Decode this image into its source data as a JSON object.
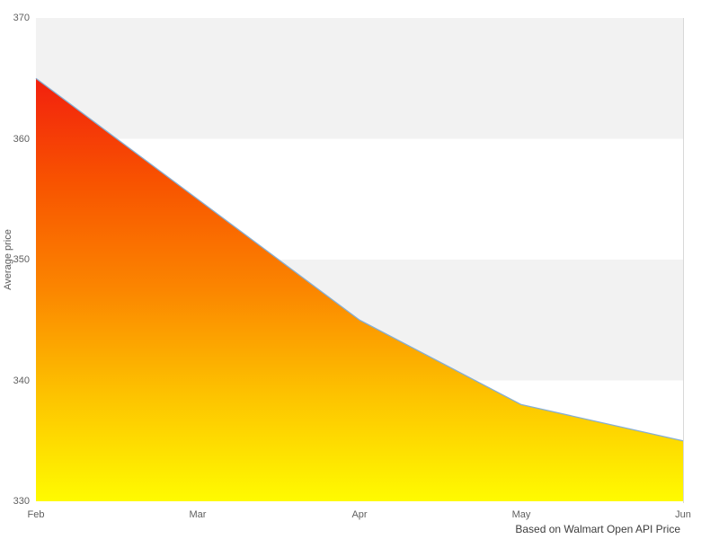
{
  "chart_data": {
    "type": "area",
    "categories": [
      "Feb",
      "Mar",
      "Apr",
      "May",
      "Jun"
    ],
    "values": [
      365,
      355,
      345,
      338,
      335
    ],
    "title": "",
    "xlabel": "",
    "ylabel": "Average price",
    "ylim": [
      330,
      370
    ],
    "yticks": [
      330,
      340,
      350,
      360,
      370
    ],
    "grid": "alternating horizontal plot bands",
    "legend": "none",
    "caption": "Based on Walmart Open API Price",
    "colors": {
      "background": "#ffffff",
      "band": "#f2f2f2",
      "plot_border": "#d8d8d8",
      "line": "#86aed2",
      "area_gradient": [
        "#f2200e",
        "#f85400",
        "#fb8600",
        "#fdc300",
        "#fffb00"
      ],
      "tick_text": "#5f5f5f",
      "caption_text": "#3d3d3d"
    }
  }
}
